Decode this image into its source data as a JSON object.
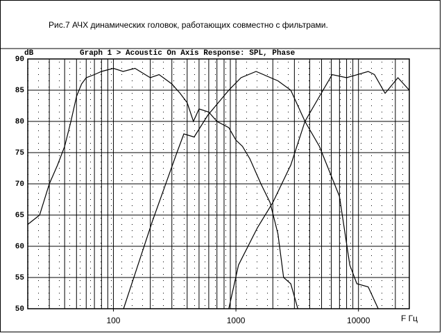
{
  "chart_data": {
    "type": "line",
    "caption": "Рис.7    АЧХ динамических головок, работающих совместно с фильтрами.",
    "title": "Graph 1 > Acoustic On Axis Response: SPL, Phase",
    "ylabel": "dB",
    "xlabel": "F Гц",
    "xscale": "log",
    "xlim": [
      20,
      26000
    ],
    "ylim": [
      50,
      90
    ],
    "xticks": [
      100,
      1000,
      10000
    ],
    "xgrid": [
      20,
      30,
      40,
      50,
      60,
      70,
      80,
      90,
      100,
      200,
      300,
      400,
      500,
      600,
      700,
      800,
      900,
      1000,
      2000,
      3000,
      4000,
      5000,
      6000,
      7000,
      8000,
      9000,
      10000,
      20000
    ],
    "yticks": [
      50,
      55,
      60,
      65,
      70,
      75,
      80,
      85,
      90
    ],
    "grid": true,
    "series": [
      {
        "color": "#000000",
        "x": [
          20,
          25,
          30,
          35,
          40,
          45,
          50,
          55,
          60,
          70,
          80,
          100,
          120,
          150,
          200,
          236,
          300,
          350,
          400,
          450,
          500,
          600,
          700,
          875,
          1000,
          1130,
          1300,
          1600,
          1900,
          2200,
          2450,
          2800,
          3200
        ],
        "values": [
          63.5,
          65,
          70,
          73,
          76,
          80,
          84,
          86,
          87,
          87.5,
          88,
          88.5,
          88,
          88.5,
          87,
          87.5,
          86,
          84.5,
          83,
          80,
          82,
          81.5,
          80,
          79,
          77,
          76,
          74,
          70,
          67,
          62,
          55,
          54,
          50
        ]
      },
      {
        "color": "#000000",
        "x": [
          121,
          208,
          330,
          376,
          456,
          590,
          875,
          1100,
          1460,
          2200,
          2800,
          3660,
          4800,
          7000,
          8500,
          9700,
          12000,
          14500
        ],
        "values": [
          50,
          64,
          75,
          78,
          77.5,
          81,
          85,
          87,
          88,
          86.5,
          85,
          80,
          76,
          68,
          57,
          54,
          53.5,
          50
        ]
      },
      {
        "color": "#000000",
        "x": [
          875,
          1050,
          1500,
          2000,
          2800,
          3660,
          4800,
          6100,
          8000,
          12000,
          13500,
          16500,
          21000,
          26000
        ],
        "values": [
          50,
          57,
          63,
          67,
          73,
          80,
          84,
          87.5,
          87,
          88,
          87.5,
          84.5,
          87,
          85
        ]
      }
    ]
  }
}
